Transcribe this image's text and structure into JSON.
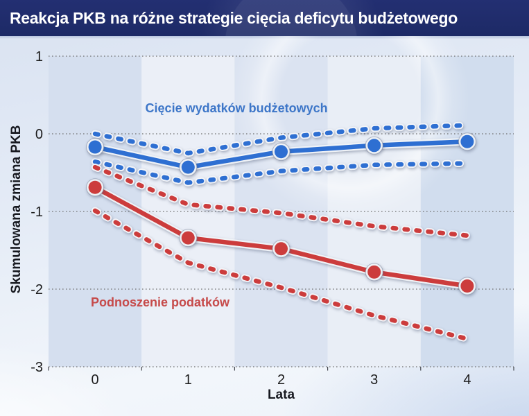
{
  "header": {
    "title": "Reakcja PKB na różne strategie cięcia deficytu budżetowego"
  },
  "colors": {
    "header_bg": "#1d2a66",
    "header_text": "#ffffff",
    "blue_series": "#2e6fd2",
    "red_series": "#cc3c3c",
    "blue_label": "#3d76c8",
    "red_label": "#c64a4a",
    "gridline": "#707070",
    "tick_text": "#1c1c1c"
  },
  "chart_data": {
    "type": "line",
    "title": "Reakcja PKB na różne strategie cięcia deficytu budżetowego",
    "xlabel": "Lata",
    "ylabel": "Skumulowana zmiana PKB",
    "x": [
      0,
      1,
      2,
      3,
      4
    ],
    "xtick_labels": [
      "0",
      "1",
      "2",
      "3",
      "4"
    ],
    "ytick_labels": [
      "1",
      "0",
      "-1",
      "-2",
      "-3"
    ],
    "ytick_values": [
      1,
      0,
      -1,
      -2,
      -3
    ],
    "ylim": [
      -3,
      1
    ],
    "grid": "horizontal-dotted",
    "legend_position": "inline-annotations",
    "series": [
      {
        "group": "Cięcie wydatków budżetowych",
        "band": "center",
        "style": "solid",
        "markers": true,
        "color": "#2e6fd2",
        "values": [
          -0.17,
          -0.43,
          -0.23,
          -0.15,
          -0.1
        ]
      },
      {
        "group": "Cięcie wydatków budżetowych",
        "band": "upper",
        "style": "dashed",
        "markers": false,
        "color": "#2e6fd2",
        "values": [
          0.0,
          -0.25,
          -0.05,
          0.07,
          0.11
        ]
      },
      {
        "group": "Cięcie wydatków budżetowych",
        "band": "lower",
        "style": "dashed",
        "markers": false,
        "color": "#2e6fd2",
        "values": [
          -0.36,
          -0.63,
          -0.48,
          -0.4,
          -0.38
        ]
      },
      {
        "group": "Podnoszenie podatków",
        "band": "center",
        "style": "solid",
        "markers": true,
        "color": "#cc3c3c",
        "values": [
          -0.69,
          -1.34,
          -1.48,
          -1.78,
          -1.96
        ]
      },
      {
        "group": "Podnoszenie podatków",
        "band": "upper",
        "style": "dashed",
        "markers": false,
        "color": "#cc3c3c",
        "values": [
          -0.43,
          -0.91,
          -1.02,
          -1.19,
          -1.31
        ]
      },
      {
        "group": "Podnoszenie podatków",
        "band": "lower",
        "style": "dashed",
        "markers": false,
        "color": "#cc3c3c",
        "values": [
          -0.99,
          -1.66,
          -1.98,
          -2.34,
          -2.64
        ]
      }
    ],
    "annotations": [
      {
        "text": "Cięcie wydatków budżetowych",
        "color": "#3d76c8",
        "x": 2.02,
        "y": 0.33
      },
      {
        "text": "Podnoszenie podatków",
        "color": "#c64a4a",
        "x": 1.2,
        "y": -2.17
      }
    ]
  }
}
